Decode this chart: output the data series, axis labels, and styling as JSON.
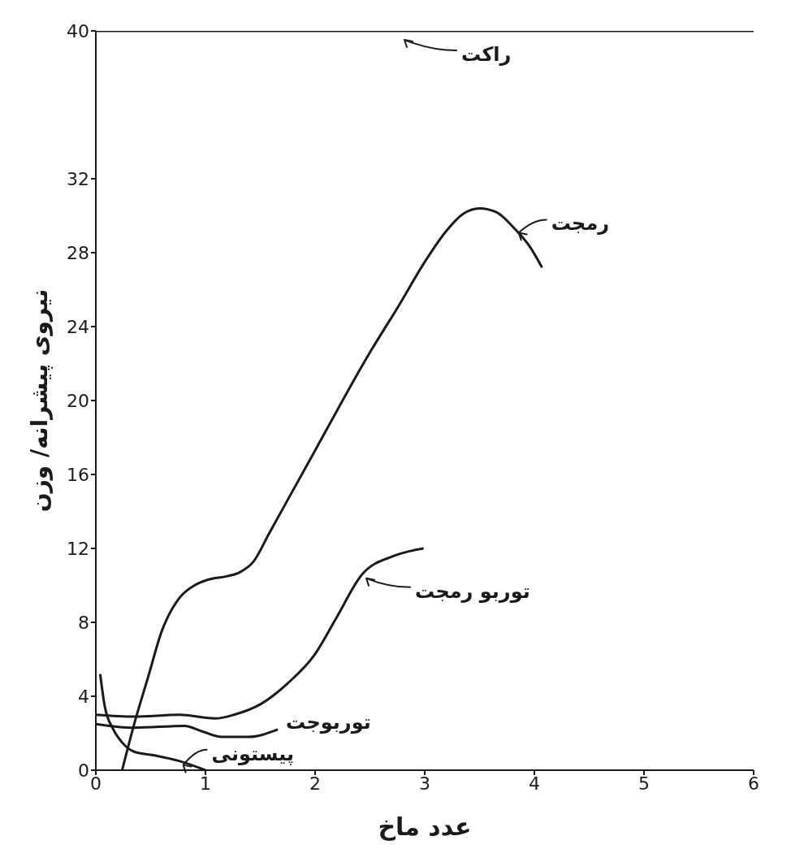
{
  "chart_data": {
    "type": "line",
    "xlabel": "عدد ماخ",
    "ylabel": "نیروی پیشرانه/ وزن",
    "xlim": [
      0,
      6
    ],
    "xticks": [
      0,
      1,
      2,
      3,
      4,
      5,
      6
    ],
    "ylim": [
      0,
      40
    ],
    "yticks": [
      0,
      4,
      8,
      12,
      16,
      20,
      24,
      28,
      32,
      40
    ],
    "grid": false,
    "legend": "right",
    "marker": "none",
    "line_style": "solid",
    "series": [
      {
        "name": "راکت",
        "color": "#1a1a1a",
        "x": [
          0,
          6
        ],
        "values": [
          40,
          40
        ]
      },
      {
        "name": "رمجت",
        "color": "#1a1a1a",
        "x": [
          0.24,
          0.35,
          0.48,
          0.6,
          0.76,
          0.9,
          1.02,
          1.2,
          1.31,
          1.44,
          1.58,
          2.0,
          2.5,
          2.77,
          3.0,
          3.2,
          3.35,
          3.5,
          3.65,
          3.82,
          3.95,
          4.07
        ],
        "values": [
          0,
          2.5,
          5.1,
          7.5,
          9.3,
          10,
          10.3,
          10.5,
          10.7,
          11.3,
          12.8,
          17.3,
          22.6,
          25.2,
          27.5,
          29.2,
          30.1,
          30.4,
          30.2,
          29.3,
          28.4,
          27.2
        ]
      },
      {
        "name": "توربو رمجت",
        "color": "#1a1a1a",
        "x": [
          0,
          0.35,
          0.76,
          1.09,
          1.26,
          1.51,
          1.75,
          1.99,
          2.19,
          2.43,
          2.72,
          2.99
        ],
        "values": [
          3.0,
          2.9,
          3.0,
          2.8,
          3.0,
          3.6,
          4.7,
          6.2,
          8.2,
          10.6,
          11.6,
          12.0
        ]
      },
      {
        "name": "توربوجت",
        "color": "#1a1a1a",
        "x": [
          0,
          0.35,
          0.81,
          0.97,
          1.15,
          1.39,
          1.66
        ],
        "values": [
          2.5,
          2.3,
          2.4,
          2.1,
          1.8,
          1.8,
          2.2
        ]
      },
      {
        "name": "پیستونی",
        "color": "#1a1a1a",
        "x": [
          0.04,
          0.08,
          0.16,
          0.24,
          0.35,
          0.54,
          0.76,
          1.0
        ],
        "values": [
          5.2,
          3.5,
          2.2,
          1.5,
          1.0,
          0.8,
          0.5,
          0
        ]
      }
    ]
  }
}
